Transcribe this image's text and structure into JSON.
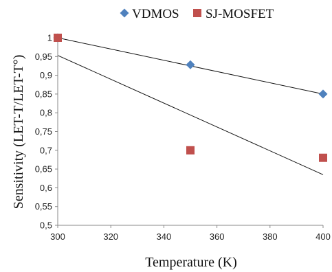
{
  "chart_data": {
    "type": "scatter",
    "title": "",
    "xlabel": "Temperature (K)",
    "ylabel": "Sensitivity (LET-T/LET-T°)",
    "xlim": [
      300,
      400
    ],
    "ylim": [
      0.5,
      1
    ],
    "xticks": [
      300,
      320,
      340,
      360,
      380,
      400
    ],
    "xtick_labels": [
      "300",
      "320",
      "340",
      "360",
      "380",
      "400"
    ],
    "yticks": [
      0.5,
      0.55,
      0.6,
      0.65,
      0.7,
      0.75,
      0.8,
      0.85,
      0.9,
      0.95,
      1
    ],
    "ytick_labels": [
      "0,5",
      "0,55",
      "0,6",
      "0,65",
      "0,7",
      "0,75",
      "0,8",
      "0,85",
      "0,9",
      "0,95",
      "1"
    ],
    "grid": false,
    "legend_position": "top",
    "series": [
      {
        "name": "VDMOS",
        "marker": "diamond",
        "color": "#4F81BD",
        "x": [
          300,
          350,
          400
        ],
        "y": [
          1.0,
          0.928,
          0.85
        ],
        "trendline": {
          "x": [
            300,
            400
          ],
          "y": [
            1.0,
            0.85
          ]
        }
      },
      {
        "name": "SJ-MOSFET",
        "marker": "square",
        "color": "#C0504D",
        "x": [
          300,
          350,
          400
        ],
        "y": [
          1.0,
          0.7,
          0.68
        ],
        "trendline": {
          "x": [
            300,
            400
          ],
          "y": [
            0.953,
            0.635
          ]
        }
      }
    ]
  }
}
